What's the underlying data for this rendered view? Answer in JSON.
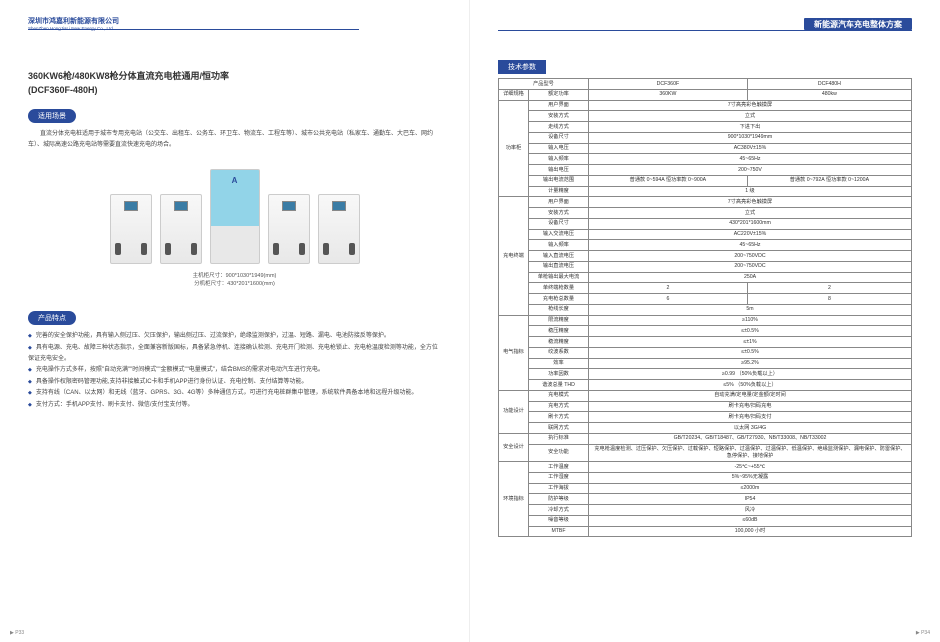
{
  "header": {
    "company_cn": "深圳市鸿嘉利新能源有限公司",
    "company_en": "ShenZhen HongJiaLi New Energy Co., Ltd",
    "right_title": "新能源汽车充电整体方案"
  },
  "footer": {
    "left": "▶ P33",
    "right": "▶ P34"
  },
  "left": {
    "title1": "360KW6枪/480KW8枪分体直流充电桩通用/恒功率",
    "title2": "(DCF360F-480H)",
    "scenario_label": "适用场景",
    "scenario_text": "直流分体充电桩适用于城市专用充电站（公交车、出租车、公务车、环卫车、物流车、工程车等）、城市公共充电站（私家车、通勤车、大巴车、网约车）、城际高速公路充电站等需要直流快速充电的场合。",
    "dims1": "主机柜尺寸：900*1030*1949(mm)",
    "dims2": "分机柜尺寸：430*201*1600(mm)",
    "features_label": "产品特点",
    "features": [
      "完善的安全保护功能，具有输入侧过压、欠压保护，输出侧过压、过流保护，绝缘监测保护，过温、短路、漏电、电池防接反等保护。",
      "具有电源、充电、故障三种状态指示，全面兼容新版国标，具备紧急停机、连接确认检测、充电开门检测、充电枪锁止、充电枪温度检测等功能，全方位保证充电安全。",
      "充电操作方式多样，按照\"自动充满\"\"时间模式\"\"金额模式\"\"电量模式\"，结合BMS的需求对电动汽车进行充电。",
      "具备操作权限密码管理功能,支持非接触式IC卡和手机APP进行身份认证、充电控制、支付结算等功能。",
      "支持有线（CAN、以太网）和无线（蓝牙、GPRS、3G、4G等）多种通信方式，可进行充电桩群集中管理，系统软件具备本地和远程升级功能。",
      "支付方式：手机APP支付、刷卡支付、微信/支付宝支付等。"
    ]
  },
  "right": {
    "spec_label": "技术参数",
    "head": {
      "model": "产品型号",
      "m1": "DCF360F",
      "m2": "DCF480H"
    },
    "g1": {
      "group": "详细规格",
      "r1": {
        "l": "额定功率",
        "v1": "360KW",
        "v2": "480kw"
      }
    },
    "g2": {
      "group": "功率柜",
      "r1": {
        "l": "用户界面",
        "v": "7寸高亮彩色触摸屏"
      },
      "r2": {
        "l": "安装方式",
        "v": "立式"
      },
      "r3": {
        "l": "走线方式",
        "v": "下进下出"
      },
      "r4": {
        "l": "设备尺寸",
        "v": "900*1030*1949mm"
      },
      "r5": {
        "l": "输入电压",
        "v": "AC380V±15%"
      },
      "r6": {
        "l": "输入频率",
        "v": "45~65Hz"
      },
      "r7": {
        "l": "输出电压",
        "v": "200~750V"
      },
      "r8": {
        "l": "输出电流范围",
        "v1": "普通款 0~594A  恒功率款 0~900A",
        "v2": "普通款 0~792A  恒功率款 0~1200A"
      },
      "r9": {
        "l": "计量精度",
        "v": "1 级"
      }
    },
    "g3": {
      "group": "充电终端",
      "r1": {
        "l": "用户界面",
        "v": "7寸高亮彩色触摸屏"
      },
      "r2": {
        "l": "安装方式",
        "v": "立式"
      },
      "r3": {
        "l": "设备尺寸",
        "v": "430*201*1600mm"
      },
      "r4": {
        "l": "输入交流电压",
        "v": "AC220V±15%"
      },
      "r5": {
        "l": "输入频率",
        "v": "45~65Hz"
      },
      "r6": {
        "l": "输入直流电压",
        "v": "200~750VDC"
      },
      "r7": {
        "l": "输出直流电压",
        "v": "200~750VDC"
      },
      "r8": {
        "l": "单枪输出最大电流",
        "v": "250A"
      },
      "r9": {
        "l": "单终端枪数量",
        "v1": "2",
        "v2": "2"
      },
      "r10": {
        "l": "充电枪总数量",
        "v1": "6",
        "v2": "8"
      },
      "r11": {
        "l": "枪线长度",
        "v": "5m"
      }
    },
    "g4": {
      "group": "电气指标",
      "r1": {
        "l": "限流精度",
        "v": "≥110%"
      },
      "r2": {
        "l": "稳压精度",
        "v": "≤±0.5%"
      },
      "r3": {
        "l": "稳流精度",
        "v": "≤±1%"
      },
      "r4": {
        "l": "纹波系数",
        "v": "≤±0.5%"
      },
      "r5": {
        "l": "效率",
        "v": "≥95.2%"
      },
      "r6": {
        "l": "功率因数",
        "v": "≥0.99 （50%负载以上）"
      },
      "r7": {
        "l": "谐波总量 THD",
        "v": "≤5% （50%负载以上）"
      }
    },
    "g5": {
      "group": "功能设计",
      "r1": {
        "l": "充电模式",
        "v": "自动充满/定电量/定金额/定时间"
      },
      "r2": {
        "l": "充电方式",
        "v": "刷卡充电/扫码充电"
      },
      "r3": {
        "l": "刷卡方式",
        "v": "刷卡充电/扫码支付"
      },
      "r4": {
        "l": "联网方式",
        "v": "以太网 3G/4G"
      }
    },
    "g6": {
      "group": "安全设计",
      "r1": {
        "l": "执行标准",
        "v": "GB/T20234、GB/T18487、GB/T27930、NB/T33008、NB/T33002"
      },
      "r2": {
        "l": "安全功能",
        "v": "充电枪温度检测、过压保护、欠压保护、过载保护、短路保护、过温保护、过温保护、低温保护、绝缘监测保护、漏电保护、防雷保护、急停保护、接地保护"
      }
    },
    "g7": {
      "group": "环境指标",
      "r1": {
        "l": "工作温度",
        "v": "-25℃~+55℃"
      },
      "r2": {
        "l": "工作湿度",
        "v": "5%~95%无凝露"
      },
      "r3": {
        "l": "工作海拔",
        "v": "≤2000m"
      },
      "r4": {
        "l": "防护等级",
        "v": "IP54"
      },
      "r5": {
        "l": "冷却方式",
        "v": "风冷"
      },
      "r6": {
        "l": "噪音等级",
        "v": "≤60dB"
      },
      "r7": {
        "l": "MTBF",
        "v": "100,000 小时"
      }
    }
  }
}
